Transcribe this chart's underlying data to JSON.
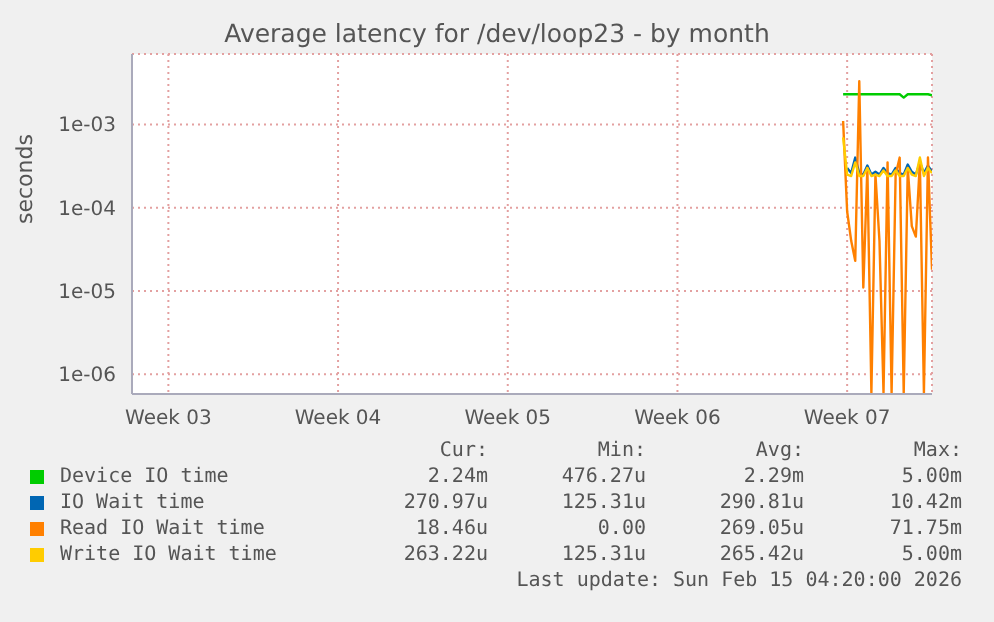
{
  "chart_data": {
    "type": "line",
    "title": "Average latency for /dev/loop23 - by month",
    "ylabel": "seconds",
    "x": [
      "2026-02-11T08:00",
      "2026-02-11T12:00",
      "2026-02-11T16:00",
      "2026-02-11T20:00",
      "2026-02-12T00:00",
      "2026-02-12T04:00",
      "2026-02-12T08:00",
      "2026-02-12T12:00",
      "2026-02-12T16:00",
      "2026-02-12T20:00",
      "2026-02-13T00:00",
      "2026-02-13T04:00",
      "2026-02-13T08:00",
      "2026-02-13T12:00",
      "2026-02-13T16:00",
      "2026-02-13T20:00",
      "2026-02-14T00:00",
      "2026-02-14T04:00",
      "2026-02-14T08:00",
      "2026-02-14T12:00",
      "2026-02-14T16:00",
      "2026-02-14T20:00",
      "2026-02-15T00:00"
    ],
    "series": [
      {
        "name": "Device IO time",
        "color": "#00cc00",
        "values": [
          0.0023,
          0.0023,
          0.0023,
          0.0023,
          0.0023,
          0.0023,
          0.0023,
          0.0023,
          0.0023,
          0.0023,
          0.0023,
          0.0023,
          0.0023,
          0.0023,
          0.0023,
          0.0021,
          0.0023,
          0.0023,
          0.0023,
          0.0023,
          0.0023,
          0.0023,
          0.00224
        ]
      },
      {
        "name": "IO Wait time",
        "color": "#0066b3",
        "values": [
          null,
          0.0003,
          0.00026,
          0.0004,
          0.00026,
          0.00025,
          0.00032,
          0.00025,
          0.00027,
          0.00025,
          0.0003,
          0.00026,
          0.00025,
          0.0003,
          0.00026,
          0.00025,
          0.00033,
          0.00027,
          0.00025,
          0.00035,
          0.00026,
          0.00032,
          0.00027
        ]
      },
      {
        "name": "Read IO Wait time",
        "color": "#ff8000",
        "values": [
          0.0011,
          9e-05,
          4e-05,
          2.3e-05,
          0.0033,
          1.1e-05,
          0.0003,
          6e-07,
          0.00025,
          4e-05,
          6e-07,
          0.00035,
          6e-07,
          0.00025,
          0.0004,
          6e-07,
          0.0003,
          6e-05,
          4.5e-05,
          0.00035,
          6e-07,
          0.0004,
          1.8e-05
        ]
      },
      {
        "name": "Write IO Wait time",
        "color": "#ffcc00",
        "values": [
          0.0007,
          0.00025,
          0.00024,
          0.00035,
          0.00024,
          0.00024,
          0.0003,
          0.00024,
          0.00025,
          0.00024,
          0.00028,
          0.00024,
          0.00024,
          0.00028,
          0.00024,
          0.00024,
          0.0003,
          0.00025,
          0.00024,
          0.0004,
          0.00024,
          0.0003,
          0.00026
        ]
      }
    ],
    "xlim": [
      "2026-01-13",
      "2026-02-15"
    ],
    "xticks": [
      {
        "value": "2026-01-14T12:00",
        "label": "Week 03"
      },
      {
        "value": "2026-01-21T12:00",
        "label": "Week 04"
      },
      {
        "value": "2026-01-28T12:00",
        "label": "Week 05"
      },
      {
        "value": "2026-02-04T12:00",
        "label": "Week 06"
      },
      {
        "value": "2026-02-11T12:00",
        "label": "Week 07"
      }
    ],
    "ylim": [
      5.8e-07,
      0.007
    ],
    "yticks": [
      {
        "value": 0.001,
        "label": "1e-03"
      },
      {
        "value": 0.0001,
        "label": "1e-04"
      },
      {
        "value": 1e-05,
        "label": "1e-05"
      },
      {
        "value": 1e-06,
        "label": "1e-06"
      }
    ],
    "log": true,
    "grid": true,
    "legend": "bottom",
    "annotations": [
      "Cur:",
      "Min:",
      "Avg:",
      "Max:",
      "2.24m",
      "476.27u",
      "2.29m",
      "5.00m",
      "270.97u",
      "125.31u",
      "290.81u",
      "10.42m",
      "18.46u",
      "0.00",
      "269.05u",
      "71.75m",
      "263.22u",
      "125.31u",
      "265.42u",
      "5.00m",
      "Last update: Sun Feb 15 04:20:00 2026"
    ]
  }
}
